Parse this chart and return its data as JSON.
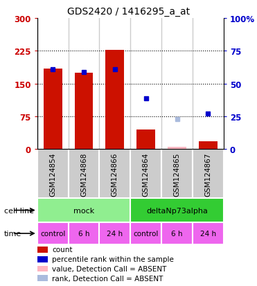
{
  "title": "GDS2420 / 1416295_a_at",
  "samples": [
    "GSM124854",
    "GSM124868",
    "GSM124866",
    "GSM124864",
    "GSM124865",
    "GSM124867"
  ],
  "count_values": [
    185,
    175,
    227,
    45,
    5,
    18
  ],
  "count_absent": [
    false,
    false,
    false,
    false,
    true,
    false
  ],
  "rank_values": [
    61,
    59,
    61,
    39,
    23,
    27
  ],
  "rank_absent": [
    false,
    false,
    false,
    false,
    true,
    false
  ],
  "ylim_left": [
    0,
    300
  ],
  "ylim_right": [
    0,
    100
  ],
  "yticks_left": [
    0,
    75,
    150,
    225,
    300
  ],
  "yticks_right": [
    0,
    25,
    50,
    75,
    100
  ],
  "cell_line_groups": [
    {
      "label": "mock",
      "span": [
        0,
        3
      ],
      "color": "#90EE90"
    },
    {
      "label": "deltaNp73alpha",
      "span": [
        3,
        6
      ],
      "color": "#33CC33"
    }
  ],
  "time_labels": [
    "control",
    "6 h",
    "24 h",
    "control",
    "6 h",
    "24 h"
  ],
  "time_color": "#EE66EE",
  "bar_color_present": "#CC1100",
  "bar_color_absent": "#FFB6C1",
  "rank_color_present": "#0000CC",
  "rank_color_absent": "#AABBDD",
  "bg_color": "#CCCCCC",
  "plot_bg": "#FFFFFF",
  "left_axis_color": "#CC0000",
  "right_axis_color": "#0000CC",
  "cell_line_label": "cell line",
  "time_label": "time",
  "legend_items": [
    {
      "label": "count",
      "color": "#CC1100"
    },
    {
      "label": "percentile rank within the sample",
      "color": "#0000CC"
    },
    {
      "label": "value, Detection Call = ABSENT",
      "color": "#FFB6C1"
    },
    {
      "label": "rank, Detection Call = ABSENT",
      "color": "#AABBDD"
    }
  ]
}
